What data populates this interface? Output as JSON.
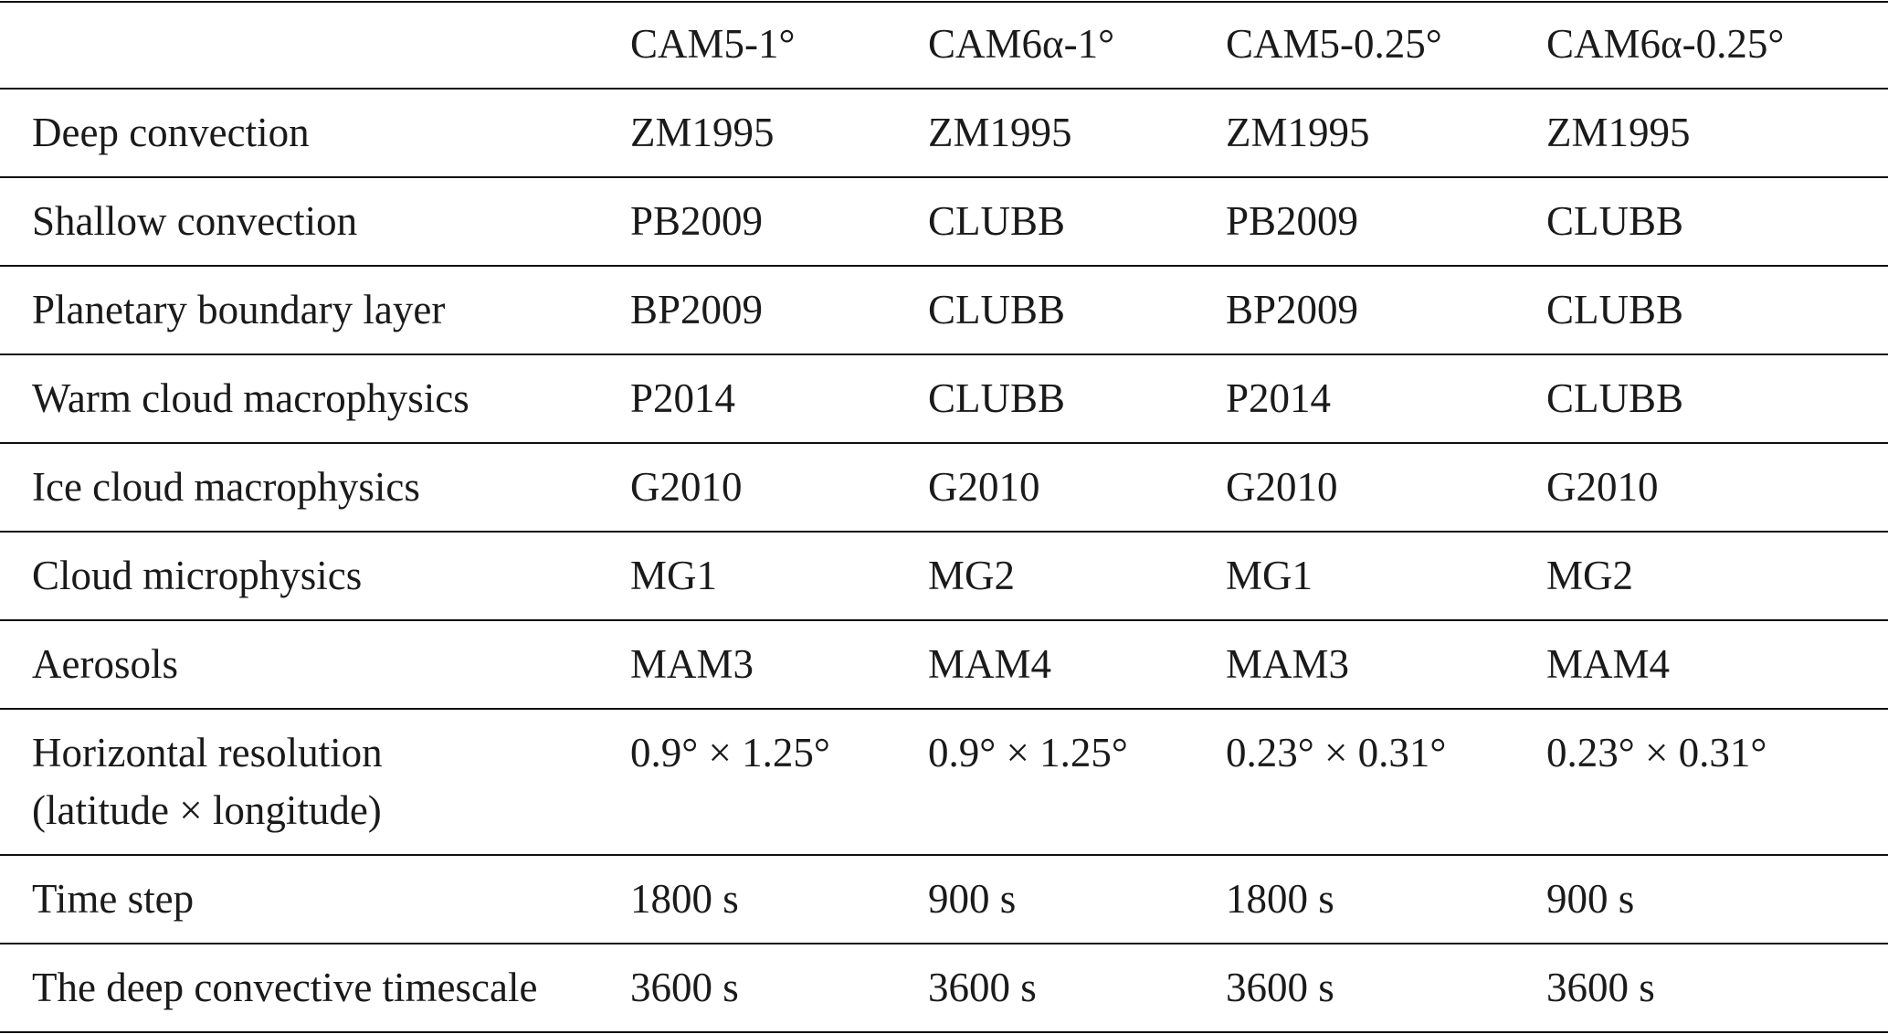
{
  "table": {
    "header": [
      "",
      "CAM5-1°",
      "CAM6α-1°",
      "CAM5-0.25°",
      "CAM6α-0.25°"
    ],
    "rows": [
      [
        "Deep convection",
        "ZM1995",
        "ZM1995",
        "ZM1995",
        "ZM1995"
      ],
      [
        "Shallow convection",
        "PB2009",
        "CLUBB",
        "PB2009",
        "CLUBB"
      ],
      [
        "Planetary boundary layer",
        "BP2009",
        "CLUBB",
        "BP2009",
        "CLUBB"
      ],
      [
        "Warm cloud macrophysics",
        "P2014",
        "CLUBB",
        "P2014",
        "CLUBB"
      ],
      [
        "Ice cloud macrophysics",
        "G2010",
        "G2010",
        "G2010",
        "G2010"
      ],
      [
        "Cloud microphysics",
        "MG1",
        "MG2",
        "MG1",
        "MG2"
      ],
      [
        "Aerosols",
        "MAM3",
        "MAM4",
        "MAM3",
        "MAM4"
      ],
      [
        "Horizontal resolution\n(latitude × longitude)",
        "0.9° × 1.25°",
        "0.9° × 1.25°",
        "0.23° × 0.31°",
        "0.23° × 0.31°"
      ],
      [
        "Time step",
        "1800 s",
        "900 s",
        "1800 s",
        "900 s"
      ],
      [
        "The deep convective timescale",
        "3600 s",
        "3600 s",
        "3600 s",
        "3600 s"
      ]
    ]
  }
}
